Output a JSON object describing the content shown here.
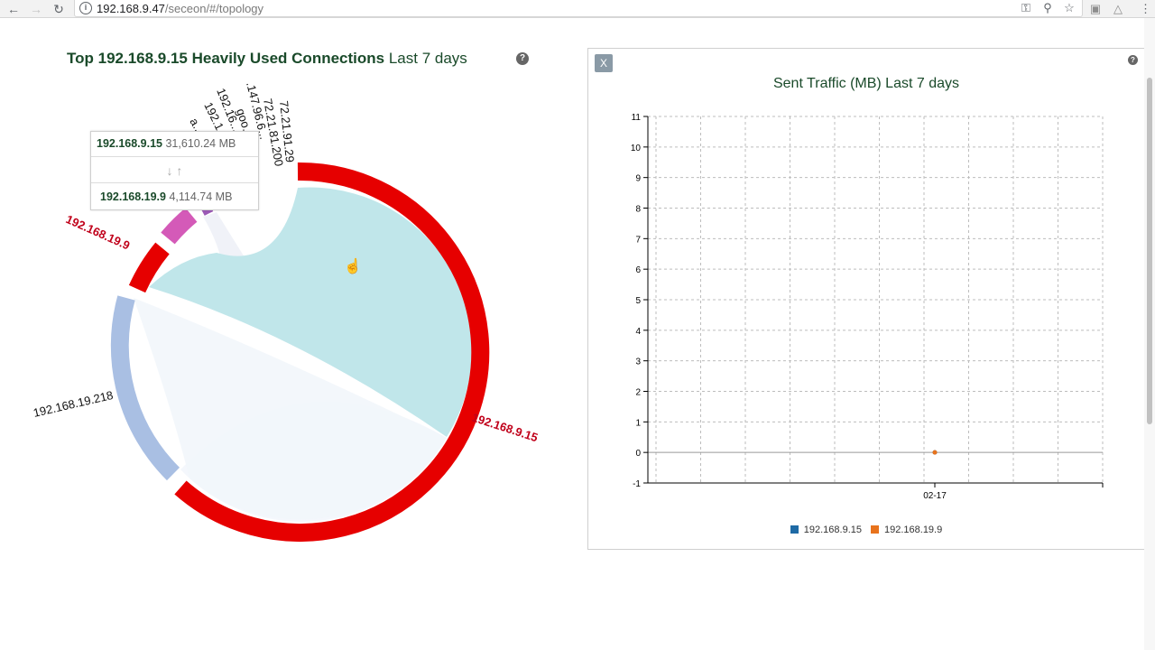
{
  "browser": {
    "url_host": "192.168.9.47",
    "url_path": "/seceon/#/topology",
    "icons": [
      "back-icon",
      "forward-icon",
      "reload-icon",
      "info-icon",
      "key-icon",
      "zoom-icon",
      "star-icon",
      "extension-icon",
      "drive-icon"
    ]
  },
  "chord": {
    "title_bold": "Top 192.168.9.15 Heavily Used Connections",
    "title_rest": "Last 7 days",
    "help": "?",
    "labels": {
      "main": "192.168.9.15",
      "peer_red": "192.168.19.9",
      "peer_blue": "192.168.19.218",
      "top_1": "72.21.91.29",
      "top_2": "72.21.81.200",
      "top_3": ".147.96.6...",
      "top_4": "goo...",
      "top_5": "192.16...",
      "top_6": "192.1...",
      "top_7": "a..."
    },
    "colors": {
      "main_arc": "#e60000",
      "peer_red": "#e60000",
      "peer_blue": "#a9bfe3",
      "peer_pink": "#d45ab8",
      "chord_main": "#c0e6ea",
      "chord_other": "#f2f6fb",
      "label_red": "#c0001a"
    }
  },
  "tooltip": {
    "src_ip": "192.168.9.15",
    "src_value": "31,610.24 MB",
    "arrows": "↓ ↑",
    "dst_ip": "192.168.19.9",
    "dst_value": "4,114.74 MB"
  },
  "chart_panel": {
    "close_label": "X",
    "help": "?",
    "legend": [
      {
        "name": "192.168.9.15",
        "color": "#1f6aa5"
      },
      {
        "name": "192.168.19.9",
        "color": "#e8731c"
      }
    ]
  },
  "chart_data": {
    "type": "line",
    "title": "Sent Traffic (MB) Last 7 days",
    "xlabel": "",
    "ylabel": "",
    "ylim": [
      -1,
      11
    ],
    "yticks": [
      -1,
      0,
      1,
      2,
      3,
      4,
      5,
      6,
      7,
      8,
      9,
      10,
      11
    ],
    "xticks": [
      "02-17"
    ],
    "grid": true,
    "legend_position": "bottom",
    "series": [
      {
        "name": "192.168.9.15",
        "x": [
          "02-17"
        ],
        "y": [
          0
        ],
        "color": "#1f6aa5"
      },
      {
        "name": "192.168.19.9",
        "x": [
          "02-17"
        ],
        "y": [
          0
        ],
        "color": "#e8731c"
      }
    ]
  }
}
